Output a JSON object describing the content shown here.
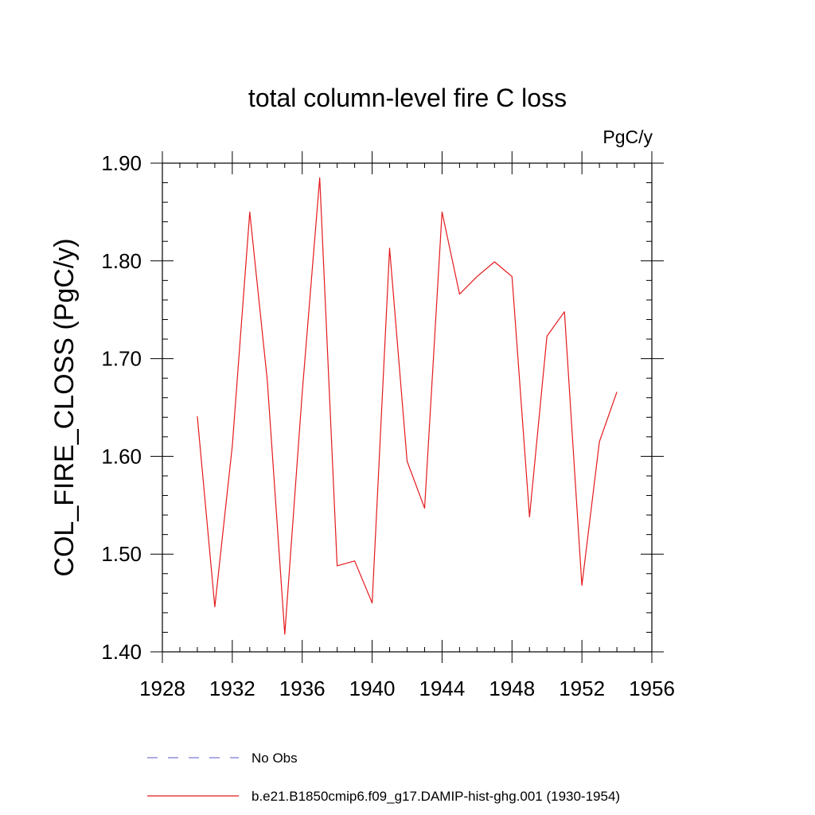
{
  "chart_data": {
    "type": "line",
    "title": "total column-level fire C loss",
    "units_label": "PgC/y",
    "xlabel": "",
    "ylabel": "COL_FIRE_CLOSS  (PgC/y)",
    "xlim": [
      1928,
      1956
    ],
    "ylim": [
      1.4,
      1.9
    ],
    "x_ticks": [
      1928,
      1932,
      1936,
      1940,
      1944,
      1948,
      1952,
      1956
    ],
    "x_tick_labels": [
      "1928",
      "1932",
      "1936",
      "1940",
      "1944",
      "1948",
      "1952",
      "1956"
    ],
    "y_ticks": [
      1.4,
      1.5,
      1.6,
      1.7,
      1.8,
      1.9
    ],
    "y_tick_labels": [
      "1.40",
      "1.50",
      "1.60",
      "1.70",
      "1.80",
      "1.90"
    ],
    "grid": false,
    "legend_position": "bottom",
    "series": [
      {
        "name": "b.e21.B1850cmip6.f09_g17.DAMIP-hist-ghg.001 (1930-1954)",
        "color": "#e41a1c",
        "style": "solid",
        "x": [
          1930,
          1931,
          1932,
          1933,
          1934,
          1935,
          1936,
          1937,
          1938,
          1939,
          1940,
          1941,
          1942,
          1943,
          1944,
          1945,
          1946,
          1947,
          1948,
          1949,
          1950,
          1951,
          1952,
          1953,
          1954
        ],
        "values": [
          1.641,
          1.446,
          1.611,
          1.85,
          1.678,
          1.418,
          1.665,
          1.885,
          1.488,
          1.493,
          1.45,
          1.813,
          1.595,
          1.547,
          1.85,
          1.766,
          1.784,
          1.799,
          1.784,
          1.538,
          1.723,
          1.748,
          1.468,
          1.615,
          1.666
        ]
      }
    ],
    "legend": [
      {
        "label": "No Obs",
        "color": "#7b7bd1",
        "style": "dashed"
      },
      {
        "label": "b.e21.B1850cmip6.f09_g17.DAMIP-hist-ghg.001 (1930-1954)",
        "color": "#e41a1c",
        "style": "solid"
      }
    ]
  }
}
